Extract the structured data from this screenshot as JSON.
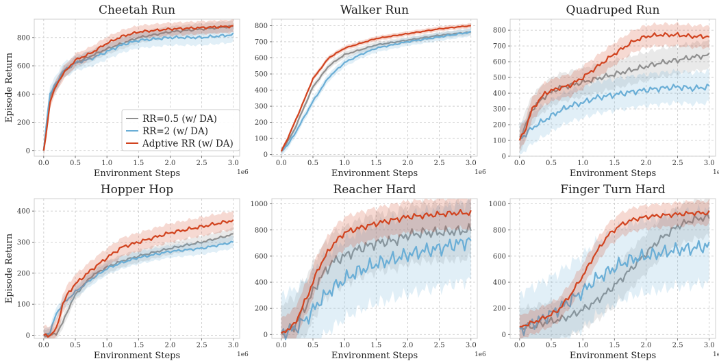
{
  "chart_data": {
    "type": "line",
    "x_label": "Environment Steps",
    "y_label": "Episode Return",
    "x_offset_label": "1e6",
    "x_ticks": [
      "0.0",
      "0.5",
      "1.0",
      "1.5",
      "2.0",
      "2.5",
      "3.0"
    ],
    "grid": true,
    "legend": {
      "placement": "lower-right of first panel",
      "entries": [
        "RR=0.5 (w/ DA)",
        "RR=2 (w/ DA)",
        "Adptive RR (w/ DA)"
      ]
    },
    "colors": {
      "RR=0.5 (w/ DA)": "#8f8f8f",
      "RR=2 (w/ DA)": "#6aaed6",
      "Adptive RR (w/ DA)": "#d1431f"
    },
    "panels": [
      {
        "title": "Cheetah Run",
        "xlim": [
          -0.15,
          3.1
        ],
        "ylim": [
          -40,
          930
        ],
        "yticks": [
          0,
          200,
          400,
          600,
          800
        ],
        "x": [
          0,
          0.05,
          0.1,
          0.2,
          0.3,
          0.5,
          0.75,
          1.0,
          1.25,
          1.5,
          2.0,
          2.5,
          3.0
        ],
        "series": [
          {
            "name": "RR=0.5 (w/ DA)",
            "values": [
              0,
              200,
              380,
              470,
              550,
              620,
              670,
              720,
              760,
              800,
              840,
              860,
              880
            ],
            "band": 40
          },
          {
            "name": "RR=2 (w/ DA)",
            "values": [
              0,
              230,
              400,
              480,
              560,
              620,
              650,
              700,
              750,
              780,
              800,
              800,
              820
            ],
            "band": 55
          },
          {
            "name": "Adptive RR (w/ DA)",
            "values": [
              0,
              150,
              350,
              460,
              540,
              640,
              690,
              760,
              810,
              840,
              860,
              870,
              880
            ],
            "band": 45
          }
        ]
      },
      {
        "title": "Walker Run",
        "xlim": [
          -0.15,
          3.1
        ],
        "ylim": [
          -10,
          840
        ],
        "yticks": [
          0,
          100,
          200,
          300,
          400,
          500,
          600,
          700,
          800
        ],
        "x": [
          0,
          0.1,
          0.2,
          0.3,
          0.5,
          0.75,
          1.0,
          1.25,
          1.5,
          2.0,
          2.5,
          3.0
        ],
        "series": [
          {
            "name": "RR=0.5 (w/ DA)",
            "values": [
              20,
              80,
              150,
              240,
              420,
              550,
              620,
              650,
              680,
              710,
              740,
              760
            ],
            "band": 20
          },
          {
            "name": "RR=2 (w/ DA)",
            "values": [
              20,
              60,
              120,
              190,
              330,
              480,
              570,
              620,
              660,
              700,
              730,
              760
            ],
            "band": 25
          },
          {
            "name": "Adptive RR (w/ DA)",
            "values": [
              20,
              100,
              190,
              280,
              470,
              600,
              660,
              690,
              720,
              750,
              780,
              800
            ],
            "band": 15
          }
        ]
      },
      {
        "title": "Quadruped Run",
        "xlim": [
          -0.15,
          3.1
        ],
        "ylim": [
          0,
          870
        ],
        "yticks": [
          0,
          100,
          200,
          300,
          400,
          500,
          600,
          700,
          800
        ],
        "x": [
          0,
          0.1,
          0.2,
          0.4,
          0.6,
          0.8,
          1.0,
          1.2,
          1.5,
          1.8,
          2.0,
          2.2,
          2.5,
          2.75,
          3.0
        ],
        "series": [
          {
            "name": "RR=0.5 (w/ DA)",
            "values": [
              120,
              200,
              300,
              380,
              430,
              450,
              470,
              490,
              520,
              550,
              570,
              590,
              610,
              630,
              640
            ],
            "band": 90
          },
          {
            "name": "RR=2 (w/ DA)",
            "values": [
              110,
              140,
              180,
              230,
              280,
              320,
              340,
              370,
              390,
              410,
              420,
              430,
              440,
              430,
              440
            ],
            "band": 100
          },
          {
            "name": "Adptive RR (w/ DA)",
            "values": [
              100,
              180,
              300,
              400,
              430,
              450,
              500,
              560,
              650,
              730,
              760,
              770,
              770,
              760,
              760
            ],
            "band": 70
          }
        ]
      },
      {
        "title": "Hopper Hop",
        "xlim": [
          -0.15,
          3.1
        ],
        "ylim": [
          -10,
          440
        ],
        "yticks": [
          0,
          100,
          200,
          300,
          400
        ],
        "x": [
          0,
          0.1,
          0.2,
          0.3,
          0.4,
          0.5,
          0.75,
          1.0,
          1.25,
          1.5,
          2.0,
          2.5,
          3.0
        ],
        "series": [
          {
            "name": "RR=0.5 (w/ DA)",
            "values": [
              0,
              0,
              5,
              40,
              90,
              130,
              190,
              220,
              240,
              255,
              280,
              300,
              325
            ],
            "band": 20
          },
          {
            "name": "RR=2 (w/ DA)",
            "values": [
              0,
              10,
              70,
              100,
              120,
              140,
              180,
              215,
              235,
              250,
              270,
              280,
              300
            ],
            "band": 20
          },
          {
            "name": "Adptive RR (w/ DA)",
            "values": [
              0,
              0,
              20,
              100,
              140,
              165,
              210,
              250,
              285,
              300,
              330,
              350,
              370
            ],
            "band": 30
          }
        ]
      },
      {
        "title": "Reacher Hard",
        "xlim": [
          -0.15,
          3.1
        ],
        "ylim": [
          -30,
          1040
        ],
        "yticks": [
          0,
          200,
          400,
          600,
          800,
          1000
        ],
        "x": [
          0,
          0.2,
          0.4,
          0.6,
          0.8,
          1.0,
          1.2,
          1.5,
          1.8,
          2.0,
          2.25,
          2.5,
          2.75,
          3.0
        ],
        "series": [
          {
            "name": "RR=0.5 (w/ DA)",
            "values": [
              10,
              60,
              230,
              420,
              550,
              600,
              650,
              700,
              720,
              760,
              780,
              780,
              790,
              800
            ],
            "band": 220
          },
          {
            "name": "RR=2 (w/ DA)",
            "values": [
              10,
              40,
              120,
              250,
              350,
              420,
              480,
              540,
              580,
              610,
              640,
              660,
              690,
              720
            ],
            "band": 300
          },
          {
            "name": "Adptive RR (w/ DA)",
            "values": [
              10,
              70,
              280,
              520,
              680,
              780,
              810,
              850,
              880,
              900,
              910,
              920,
              930,
              930
            ],
            "band": 120
          }
        ]
      },
      {
        "title": "Finger Turn Hard",
        "xlim": [
          -0.15,
          3.1
        ],
        "ylim": [
          -30,
          1040
        ],
        "yticks": [
          0,
          200,
          400,
          600,
          800,
          1000
        ],
        "x": [
          0,
          0.2,
          0.4,
          0.6,
          0.8,
          1.0,
          1.2,
          1.4,
          1.6,
          1.8,
          2.0,
          2.2,
          2.5,
          2.75,
          3.0
        ],
        "series": [
          {
            "name": "RR=0.5 (w/ DA)",
            "values": [
              50,
              60,
              90,
              110,
              140,
              190,
              250,
              330,
              420,
              520,
              620,
              720,
              830,
              880,
              900
            ],
            "band": 150
          },
          {
            "name": "RR=2 (w/ DA)",
            "values": [
              40,
              80,
              130,
              190,
              260,
              330,
              420,
              480,
              540,
              580,
              600,
              620,
              650,
              660,
              680
            ],
            "band": 280
          },
          {
            "name": "Adptive RR (w/ DA)",
            "values": [
              60,
              90,
              130,
              180,
              300,
              450,
              620,
              760,
              840,
              880,
              900,
              910,
              920,
              930,
              930
            ],
            "band": 90
          }
        ]
      }
    ]
  }
}
